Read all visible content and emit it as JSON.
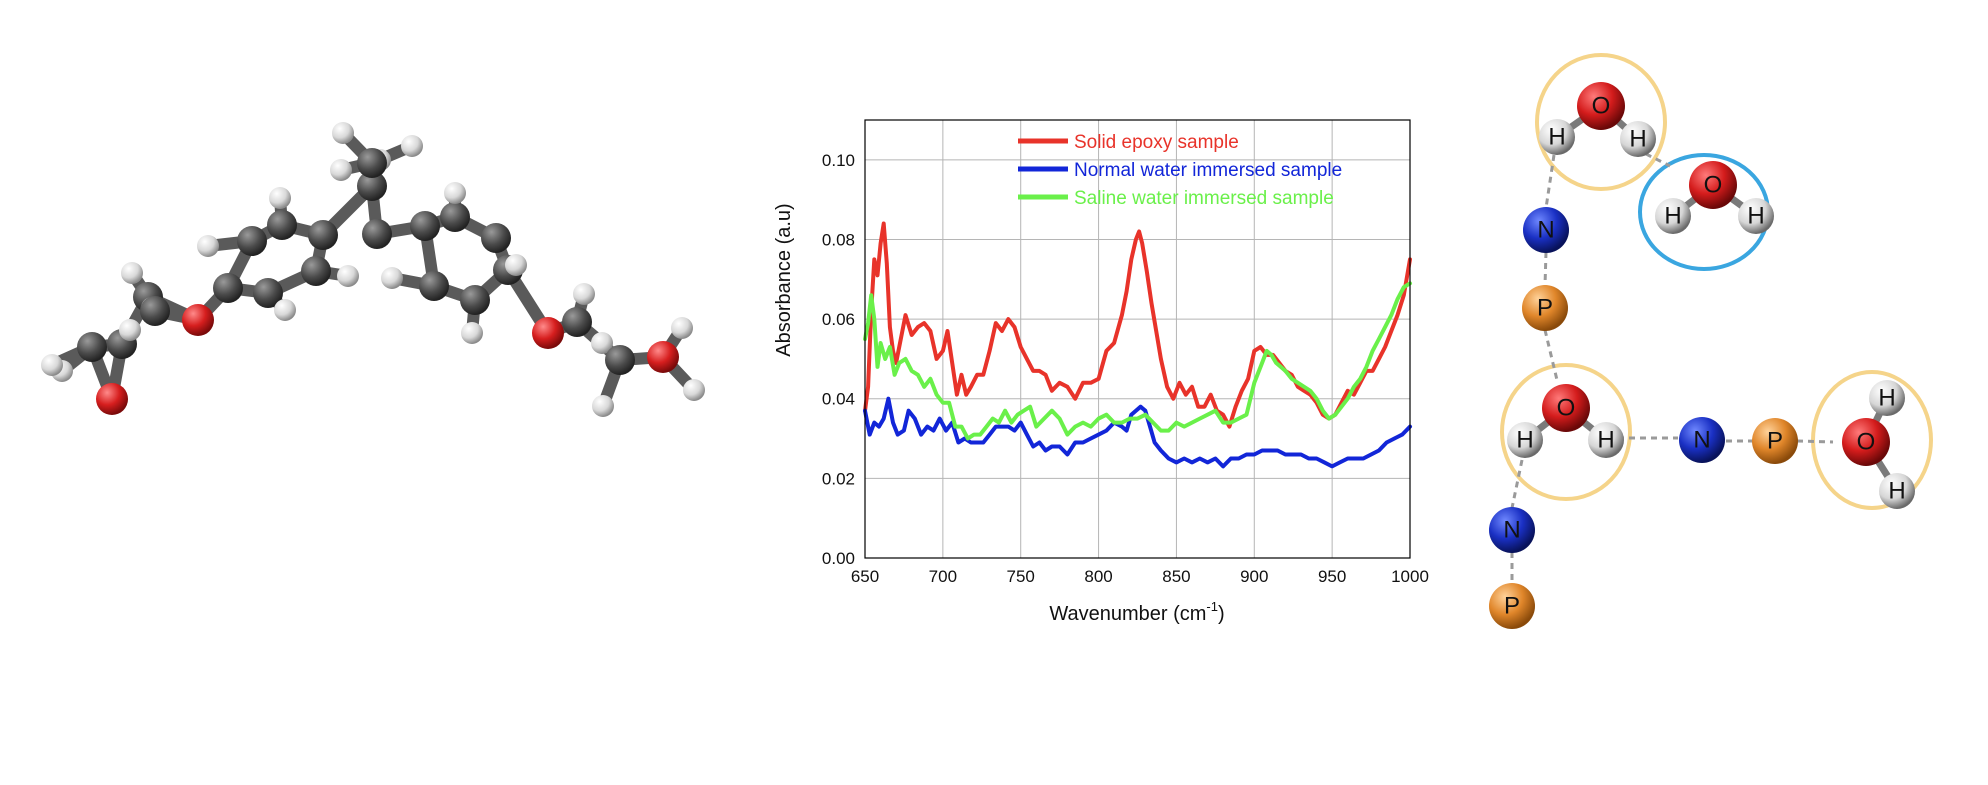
{
  "colors": {
    "carbon": "#555555",
    "hydrogen": "#e6e6e6",
    "oxygen": "#d42020",
    "nitrogen": "#1a2fc0",
    "phosphorus": "#e08a2a",
    "water_ring_yellow": "#f5d48a",
    "water_ring_blue": "#3aa6e0"
  },
  "chart_data": {
    "type": "line",
    "xlabel_main": "Wavenumber (cm",
    "xlabel_sup": "-1",
    "xlabel_end": ")",
    "ylabel": "Absorbance (a.u)",
    "xlim": [
      650,
      1000
    ],
    "ylim": [
      0,
      0.11
    ],
    "xticks": [
      "650",
      "700",
      "750",
      "800",
      "850",
      "900",
      "950",
      "1000"
    ],
    "yticks": [
      "0.00",
      "0.02",
      "0.04",
      "0.06",
      "0.08",
      "0.10"
    ],
    "grid": true,
    "legend_position": "top",
    "series": [
      {
        "name": "Solid epoxy sample",
        "color": "#e8332a",
        "x": [
          650,
          652,
          654,
          656,
          658,
          660,
          662,
          664,
          666,
          668,
          670,
          673,
          676,
          680,
          684,
          688,
          692,
          696,
          700,
          703,
          706,
          709,
          712,
          715,
          718,
          722,
          726,
          730,
          734,
          738,
          742,
          746,
          750,
          754,
          758,
          762,
          766,
          770,
          775,
          780,
          785,
          790,
          795,
          800,
          805,
          810,
          815,
          818,
          821,
          824,
          826,
          828,
          831,
          834,
          837,
          840,
          844,
          848,
          852,
          856,
          860,
          864,
          868,
          872,
          876,
          880,
          884,
          888,
          892,
          896,
          900,
          904,
          908,
          912,
          916,
          920,
          924,
          928,
          932,
          936,
          940,
          944,
          948,
          952,
          956,
          960,
          964,
          968,
          972,
          976,
          980,
          984,
          988,
          992,
          996,
          1000
        ],
        "y": [
          0.037,
          0.043,
          0.062,
          0.075,
          0.071,
          0.079,
          0.084,
          0.074,
          0.058,
          0.052,
          0.049,
          0.055,
          0.061,
          0.056,
          0.058,
          0.059,
          0.057,
          0.05,
          0.052,
          0.057,
          0.049,
          0.041,
          0.046,
          0.041,
          0.043,
          0.046,
          0.046,
          0.052,
          0.059,
          0.057,
          0.06,
          0.058,
          0.053,
          0.05,
          0.047,
          0.047,
          0.046,
          0.042,
          0.044,
          0.043,
          0.04,
          0.044,
          0.044,
          0.045,
          0.052,
          0.054,
          0.061,
          0.067,
          0.075,
          0.08,
          0.082,
          0.079,
          0.072,
          0.064,
          0.057,
          0.05,
          0.043,
          0.04,
          0.044,
          0.041,
          0.043,
          0.038,
          0.038,
          0.041,
          0.037,
          0.036,
          0.033,
          0.038,
          0.042,
          0.045,
          0.052,
          0.053,
          0.051,
          0.051,
          0.049,
          0.047,
          0.046,
          0.043,
          0.042,
          0.041,
          0.039,
          0.036,
          0.035,
          0.036,
          0.039,
          0.042,
          0.041,
          0.044,
          0.047,
          0.047,
          0.05,
          0.053,
          0.057,
          0.061,
          0.066,
          0.075
        ]
      },
      {
        "name": "Normal water immersed sample",
        "color": "#1226d8",
        "x": [
          650,
          653,
          656,
          659,
          662,
          665,
          668,
          671,
          675,
          678,
          682,
          686,
          690,
          694,
          698,
          702,
          706,
          710,
          714,
          718,
          722,
          726,
          730,
          734,
          738,
          742,
          746,
          750,
          754,
          758,
          762,
          766,
          770,
          775,
          780,
          785,
          790,
          795,
          800,
          805,
          810,
          815,
          818,
          821,
          824,
          827,
          830,
          833,
          836,
          840,
          845,
          850,
          855,
          860,
          865,
          870,
          875,
          880,
          885,
          890,
          895,
          900,
          905,
          910,
          915,
          920,
          925,
          930,
          935,
          940,
          945,
          950,
          955,
          960,
          965,
          970,
          975,
          980,
          985,
          990,
          995,
          1000
        ],
        "y": [
          0.037,
          0.031,
          0.034,
          0.033,
          0.035,
          0.04,
          0.034,
          0.031,
          0.032,
          0.037,
          0.035,
          0.031,
          0.033,
          0.032,
          0.035,
          0.032,
          0.034,
          0.029,
          0.03,
          0.029,
          0.029,
          0.029,
          0.031,
          0.033,
          0.033,
          0.033,
          0.032,
          0.034,
          0.031,
          0.028,
          0.029,
          0.027,
          0.028,
          0.028,
          0.026,
          0.029,
          0.029,
          0.03,
          0.031,
          0.032,
          0.034,
          0.033,
          0.032,
          0.036,
          0.037,
          0.038,
          0.037,
          0.033,
          0.029,
          0.027,
          0.025,
          0.024,
          0.025,
          0.024,
          0.025,
          0.024,
          0.025,
          0.023,
          0.025,
          0.025,
          0.026,
          0.026,
          0.027,
          0.027,
          0.027,
          0.026,
          0.026,
          0.026,
          0.025,
          0.025,
          0.024,
          0.023,
          0.024,
          0.025,
          0.025,
          0.025,
          0.026,
          0.027,
          0.029,
          0.03,
          0.031,
          0.033
        ]
      },
      {
        "name": "Saline water immersed sample",
        "color": "#6af04a",
        "x": [
          650,
          652,
          654,
          656,
          658,
          660,
          663,
          666,
          669,
          672,
          676,
          680,
          684,
          688,
          692,
          696,
          700,
          704,
          708,
          712,
          716,
          720,
          724,
          728,
          732,
          736,
          740,
          744,
          748,
          752,
          756,
          760,
          765,
          770,
          775,
          780,
          785,
          790,
          795,
          800,
          805,
          810,
          815,
          820,
          825,
          830,
          835,
          840,
          845,
          850,
          855,
          860,
          865,
          870,
          875,
          880,
          885,
          890,
          895,
          900,
          905,
          908,
          911,
          914,
          917,
          920,
          924,
          928,
          932,
          936,
          940,
          944,
          948,
          952,
          956,
          960,
          964,
          968,
          972,
          976,
          980,
          984,
          988,
          992,
          996,
          1000
        ],
        "y": [
          0.055,
          0.059,
          0.066,
          0.06,
          0.048,
          0.054,
          0.05,
          0.053,
          0.046,
          0.049,
          0.05,
          0.047,
          0.046,
          0.043,
          0.045,
          0.041,
          0.039,
          0.039,
          0.033,
          0.033,
          0.03,
          0.031,
          0.031,
          0.033,
          0.035,
          0.034,
          0.037,
          0.034,
          0.036,
          0.037,
          0.038,
          0.033,
          0.035,
          0.037,
          0.035,
          0.031,
          0.033,
          0.034,
          0.033,
          0.035,
          0.036,
          0.034,
          0.034,
          0.035,
          0.035,
          0.036,
          0.034,
          0.032,
          0.032,
          0.034,
          0.033,
          0.034,
          0.035,
          0.036,
          0.037,
          0.034,
          0.034,
          0.035,
          0.036,
          0.044,
          0.049,
          0.052,
          0.051,
          0.049,
          0.048,
          0.047,
          0.045,
          0.044,
          0.043,
          0.042,
          0.04,
          0.037,
          0.035,
          0.036,
          0.038,
          0.04,
          0.043,
          0.045,
          0.048,
          0.052,
          0.055,
          0.058,
          0.061,
          0.065,
          0.068,
          0.069
        ]
      }
    ]
  },
  "network_labels": {
    "hydrogen": "H",
    "oxygen": "O",
    "nitrogen": "N",
    "phosphorus": "P"
  }
}
